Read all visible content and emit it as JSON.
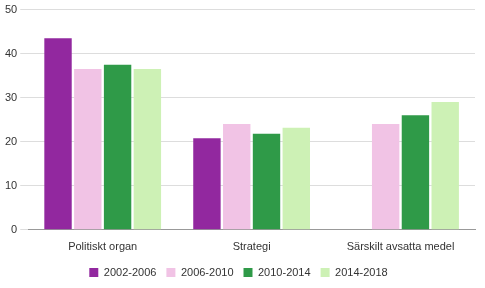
{
  "chart_data": {
    "type": "bar",
    "categories": [
      "Politiskt organ",
      "Strategi",
      "Särskilt avsatta medel"
    ],
    "series": [
      {
        "name": "2002-2006",
        "color": "#92289f",
        "values": [
          43.5,
          20.8,
          null
        ]
      },
      {
        "name": "2006-2010",
        "color": "#f1c3e5",
        "values": [
          36.5,
          24,
          24
        ]
      },
      {
        "name": "2010-2014",
        "color": "#2f9a48",
        "values": [
          37.5,
          21.8,
          26
        ]
      },
      {
        "name": "2014-2018",
        "color": "#cdf1b5",
        "values": [
          36.5,
          23.2,
          29
        ]
      }
    ],
    "ylim": [
      0,
      50
    ],
    "yticks": [
      0,
      10,
      20,
      30,
      40,
      50
    ],
    "grid": true,
    "legend": "bottom"
  }
}
